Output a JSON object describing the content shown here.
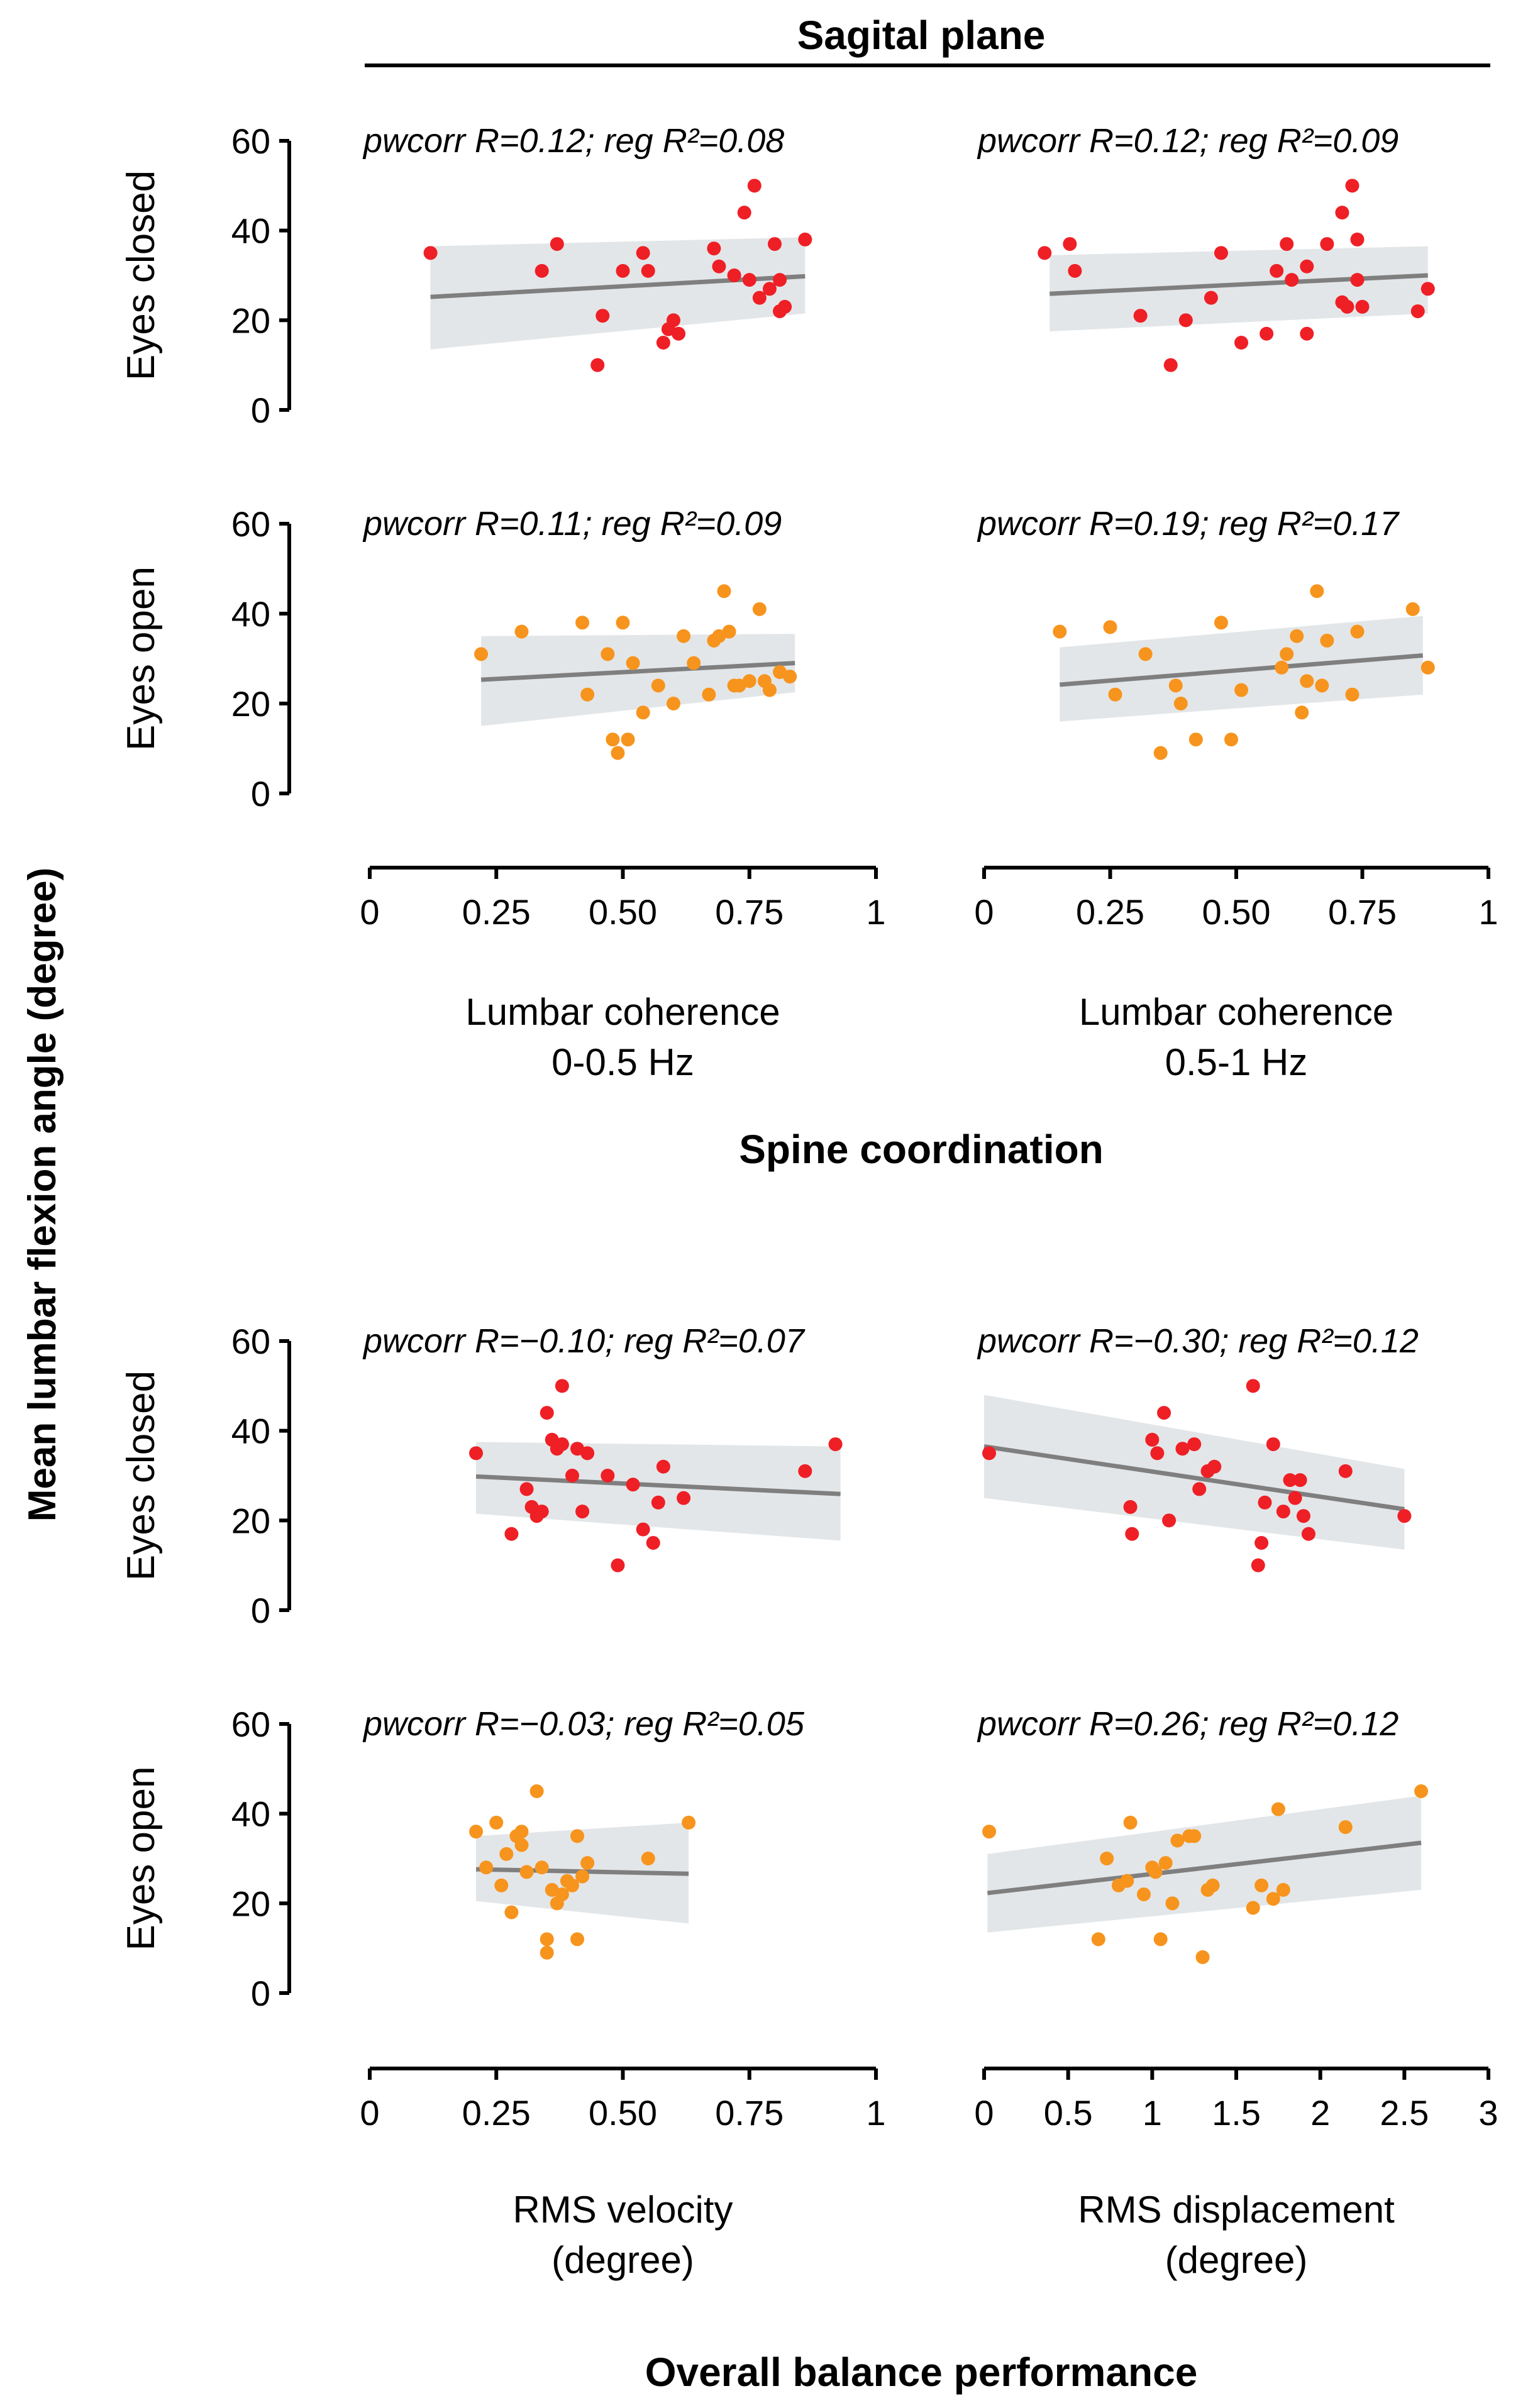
{
  "figure_title": "Sagital plane",
  "y_axis_label": "Mean lumbar flexion angle (degree)",
  "sections": [
    "Spine coordination",
    "Overall balance performance"
  ],
  "colors": {
    "eyes_closed": "#ef1f26",
    "eyes_open": "#f7941d",
    "regression": "#7f7f7f",
    "band": "#e3e6e8"
  },
  "x_axes": [
    {
      "label_lines": [
        "Lumbar coherence",
        "0-0.5 Hz"
      ],
      "ticks": [
        0,
        0.25,
        0.5,
        0.75,
        1
      ],
      "tick_labels": [
        "0",
        "0.25",
        "0.50",
        "0.75",
        "1"
      ],
      "xlim": [
        0,
        1
      ]
    },
    {
      "label_lines": [
        "Lumbar coherence",
        "0.5-1 Hz"
      ],
      "ticks": [
        0,
        0.25,
        0.5,
        0.75,
        1
      ],
      "tick_labels": [
        "0",
        "0.25",
        "0.50",
        "0.75",
        "1"
      ],
      "xlim": [
        0,
        1
      ]
    },
    {
      "label_lines": [
        "RMS velocity",
        "(degree)"
      ],
      "ticks": [
        0,
        0.25,
        0.5,
        0.75,
        1
      ],
      "tick_labels": [
        "0",
        "0.25",
        "0.50",
        "0.75",
        "1"
      ],
      "xlim": [
        0,
        1
      ]
    },
    {
      "label_lines": [
        "RMS displacement",
        "(degree)"
      ],
      "ticks": [
        0,
        0.5,
        1,
        1.5,
        2,
        2.5,
        3
      ],
      "tick_labels": [
        "0",
        "0.5",
        "1",
        "1.5",
        "2",
        "2.5",
        "3"
      ],
      "xlim": [
        0,
        3
      ]
    }
  ],
  "chart_data": [
    {
      "type": "scatter",
      "row_label": "Eyes closed",
      "condition": "closed",
      "xaxis": 0,
      "annotation": "pwcorr R=0.12; reg R²=0.08",
      "ylim": [
        0,
        60
      ],
      "yticks": [
        0,
        20,
        40,
        60
      ],
      "x": [
        0.12,
        0.34,
        0.37,
        0.45,
        0.46,
        0.5,
        0.54,
        0.55,
        0.58,
        0.59,
        0.6,
        0.61,
        0.68,
        0.69,
        0.72,
        0.74,
        0.75,
        0.76,
        0.77,
        0.79,
        0.8,
        0.81,
        0.81,
        0.82,
        0.86
      ],
      "y": [
        35,
        31,
        37,
        10,
        21,
        31,
        35,
        31,
        15,
        18,
        20,
        17,
        36,
        32,
        30,
        44,
        29,
        50,
        25,
        27,
        37,
        29,
        22,
        23,
        38
      ],
      "fit": {
        "x0": 0.12,
        "y0": 25.2,
        "x1": 0.86,
        "y1": 29.8,
        "band_lo0": 13.5,
        "band_hi0": 36.5,
        "band_lo1": 21.5,
        "band_hi1": 38.5
      }
    },
    {
      "type": "scatter",
      "row_label": "Eyes closed",
      "condition": "closed",
      "xaxis": 1,
      "annotation": "pwcorr R=0.12; reg R²=0.09",
      "ylim": [
        0,
        60
      ],
      "yticks": [
        0,
        20,
        40,
        60
      ],
      "x": [
        0.12,
        0.17,
        0.18,
        0.31,
        0.37,
        0.4,
        0.45,
        0.47,
        0.51,
        0.56,
        0.58,
        0.6,
        0.61,
        0.64,
        0.64,
        0.68,
        0.71,
        0.71,
        0.72,
        0.73,
        0.74,
        0.74,
        0.75,
        0.86,
        0.88
      ],
      "y": [
        35,
        37,
        31,
        21,
        10,
        20,
        25,
        35,
        15,
        17,
        31,
        37,
        29,
        32,
        17,
        37,
        44,
        24,
        23,
        50,
        38,
        29,
        23,
        22,
        27
      ],
      "fit": {
        "x0": 0.13,
        "y0": 25.9,
        "x1": 0.88,
        "y1": 30.0,
        "band_lo0": 17.5,
        "band_hi0": 34.5,
        "band_lo1": 21.5,
        "band_hi1": 36.5
      }
    },
    {
      "type": "scatter",
      "row_label": "Eyes open",
      "condition": "open",
      "xaxis": 0,
      "annotation": "pwcorr R=0.11; reg R²=0.09",
      "ylim": [
        0,
        60
      ],
      "yticks": [
        0,
        20,
        40,
        60
      ],
      "x": [
        0.22,
        0.3,
        0.42,
        0.43,
        0.47,
        0.48,
        0.49,
        0.5,
        0.51,
        0.52,
        0.54,
        0.57,
        0.6,
        0.62,
        0.64,
        0.67,
        0.68,
        0.69,
        0.7,
        0.71,
        0.72,
        0.73,
        0.75,
        0.77,
        0.78,
        0.79,
        0.81,
        0.83
      ],
      "y": [
        31,
        36,
        38,
        22,
        31,
        12,
        9,
        38,
        12,
        29,
        18,
        24,
        20,
        35,
        29,
        22,
        34,
        35,
        45,
        36,
        24,
        24,
        25,
        41,
        25,
        23,
        27,
        26
      ],
      "fit": {
        "x0": 0.22,
        "y0": 25.3,
        "x1": 0.84,
        "y1": 29.0,
        "band_lo0": 15.0,
        "band_hi0": 35.0,
        "band_lo1": 22.5,
        "band_hi1": 35.5
      }
    },
    {
      "type": "scatter",
      "row_label": "Eyes open",
      "condition": "open",
      "xaxis": 1,
      "annotation": "pwcorr R=0.19; reg R²=0.17",
      "ylim": [
        0,
        60
      ],
      "yticks": [
        0,
        20,
        40,
        60
      ],
      "x": [
        0.15,
        0.25,
        0.26,
        0.32,
        0.35,
        0.38,
        0.39,
        0.42,
        0.47,
        0.49,
        0.51,
        0.59,
        0.6,
        0.62,
        0.63,
        0.64,
        0.66,
        0.67,
        0.68,
        0.73,
        0.74,
        0.85,
        0.88
      ],
      "y": [
        36,
        37,
        22,
        31,
        9,
        24,
        20,
        12,
        38,
        12,
        23,
        28,
        31,
        35,
        18,
        25,
        45,
        24,
        34,
        22,
        36,
        41,
        28
      ],
      "fit": {
        "x0": 0.15,
        "y0": 24.2,
        "x1": 0.87,
        "y1": 30.7,
        "band_lo0": 16.0,
        "band_hi0": 32.5,
        "band_lo1": 22.0,
        "band_hi1": 39.5
      }
    },
    {
      "type": "scatter",
      "row_label": "Eyes closed",
      "condition": "closed",
      "xaxis": 2,
      "annotation": "pwcorr R=−0.10; reg R²=0.07",
      "ylim": [
        0,
        60
      ],
      "yticks": [
        0,
        20,
        40,
        60
      ],
      "x": [
        0.21,
        0.28,
        0.31,
        0.32,
        0.33,
        0.34,
        0.35,
        0.36,
        0.37,
        0.38,
        0.38,
        0.4,
        0.41,
        0.42,
        0.43,
        0.47,
        0.49,
        0.52,
        0.54,
        0.56,
        0.57,
        0.58,
        0.62,
        0.86,
        0.92
      ],
      "y": [
        35,
        17,
        27,
        23,
        21,
        22,
        44,
        38,
        36,
        50,
        37,
        30,
        36,
        22,
        35,
        30,
        10,
        28,
        18,
        15,
        24,
        32,
        25,
        31,
        37
      ],
      "fit": {
        "x0": 0.21,
        "y0": 29.8,
        "x1": 0.93,
        "y1": 25.9,
        "band_lo0": 21.5,
        "band_hi0": 37.5,
        "band_lo1": 15.5,
        "band_hi1": 36.5
      }
    },
    {
      "type": "scatter",
      "row_label": "Eyes closed",
      "condition": "closed",
      "xaxis": 3,
      "annotation": "pwcorr R=−0.30; reg R²=0.12",
      "ylim": [
        0,
        60
      ],
      "yticks": [
        0,
        20,
        40,
        60
      ],
      "x": [
        0.03,
        0.87,
        0.88,
        1.0,
        1.03,
        1.07,
        1.1,
        1.18,
        1.25,
        1.28,
        1.33,
        1.37,
        1.6,
        1.63,
        1.65,
        1.67,
        1.72,
        1.78,
        1.82,
        1.85,
        1.88,
        1.9,
        1.93,
        2.15,
        2.5
      ],
      "y": [
        35,
        23,
        17,
        38,
        35,
        44,
        20,
        36,
        37,
        27,
        31,
        32,
        50,
        10,
        15,
        24,
        37,
        22,
        29,
        25,
        29,
        21,
        17,
        31,
        21
      ],
      "fit": {
        "x0": 0.0,
        "y0": 36.5,
        "x1": 2.5,
        "y1": 22.5,
        "band_lo0": 25.0,
        "band_hi0": 48.0,
        "band_lo1": 13.5,
        "band_hi1": 31.5
      }
    },
    {
      "type": "scatter",
      "row_label": "Eyes open",
      "condition": "open",
      "xaxis": 2,
      "annotation": "pwcorr R=−0.03; reg R²=0.05",
      "ylim": [
        0,
        60
      ],
      "yticks": [
        0,
        20,
        40,
        60
      ],
      "x": [
        0.21,
        0.23,
        0.25,
        0.26,
        0.27,
        0.28,
        0.29,
        0.3,
        0.3,
        0.31,
        0.33,
        0.34,
        0.35,
        0.35,
        0.36,
        0.37,
        0.38,
        0.39,
        0.4,
        0.41,
        0.41,
        0.42,
        0.43,
        0.55,
        0.63
      ],
      "y": [
        36,
        28,
        38,
        24,
        31,
        18,
        35,
        33,
        36,
        27,
        45,
        28,
        9,
        12,
        23,
        20,
        22,
        25,
        24,
        12,
        35,
        26,
        29,
        30,
        38
      ],
      "fit": {
        "x0": 0.21,
        "y0": 27.6,
        "x1": 0.63,
        "y1": 26.6,
        "band_lo0": 20.5,
        "band_hi0": 35.0,
        "band_lo1": 15.5,
        "band_hi1": 38.0
      }
    },
    {
      "type": "scatter",
      "row_label": "Eyes open",
      "condition": "open",
      "xaxis": 3,
      "annotation": "pwcorr R=0.26; reg R²=0.12",
      "ylim": [
        0,
        60
      ],
      "yticks": [
        0,
        20,
        40,
        60
      ],
      "x": [
        0.03,
        0.68,
        0.73,
        0.8,
        0.85,
        0.87,
        0.95,
        1.0,
        1.02,
        1.05,
        1.08,
        1.12,
        1.15,
        1.22,
        1.25,
        1.3,
        1.33,
        1.36,
        1.6,
        1.65,
        1.72,
        1.75,
        1.78,
        2.15,
        2.6
      ],
      "y": [
        36,
        12,
        30,
        24,
        25,
        38,
        22,
        28,
        27,
        12,
        29,
        20,
        34,
        35,
        35,
        8,
        23,
        24,
        19,
        24,
        21,
        41,
        23,
        37,
        45
      ],
      "fit": {
        "x0": 0.02,
        "y0": 22.3,
        "x1": 2.6,
        "y1": 33.5,
        "band_lo0": 13.5,
        "band_hi0": 31.0,
        "band_lo1": 23.0,
        "band_hi1": 44.0
      }
    }
  ]
}
